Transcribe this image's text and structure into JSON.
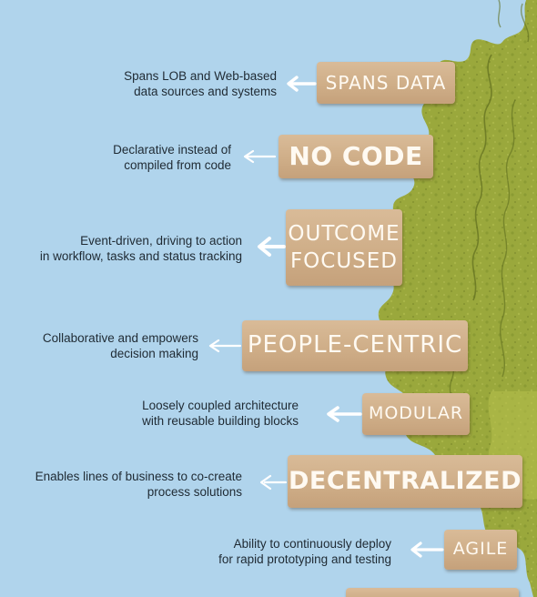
{
  "items": [
    {
      "desc": [
        "Spans LOB and Web-based",
        "data sources and systems"
      ],
      "label": [
        "SPANS DATA"
      ]
    },
    {
      "desc": [
        "Declarative instead of",
        "compiled from code"
      ],
      "label": [
        "NO CODE"
      ]
    },
    {
      "desc": [
        "Event-driven, driving to action",
        "in workflow, tasks and status tracking"
      ],
      "label": [
        "OUTCOME",
        "FOCUSED"
      ]
    },
    {
      "desc": [
        "Collaborative and empowers",
        "decision making"
      ],
      "label": [
        "PEOPLE-CENTRIC"
      ]
    },
    {
      "desc": [
        "Loosely coupled architecture",
        "with reusable building blocks"
      ],
      "label": [
        "MODULAR"
      ]
    },
    {
      "desc": [
        "Enables lines of business to co-create",
        "process solutions"
      ],
      "label": [
        "DECENTRALIZED"
      ]
    },
    {
      "desc": [
        "Ability to continuously deploy",
        "for rapid prototyping and testing"
      ],
      "label": [
        "AGILE"
      ]
    }
  ],
  "colors": {
    "sky": "#b0d4ec",
    "foliage": "#9aa83c",
    "foliage_dark": "#6e7f25",
    "sign": "#d0b08a",
    "sign_text": "#fffaf2",
    "arrow": "#ffffff"
  }
}
